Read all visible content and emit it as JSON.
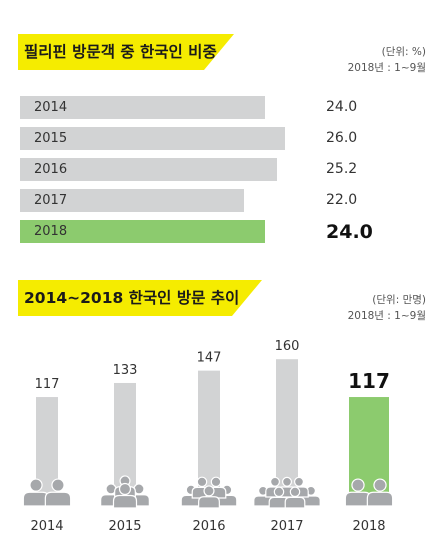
{
  "colors": {
    "banner": "#f5ec00",
    "bar": "#d2d3d4",
    "highlight": "#8ccb6e",
    "person": "#a6a8ab"
  },
  "section1": {
    "title": "필리핀 방문객 중 한국인 비중",
    "unit": "(단위: %)",
    "period": "2018년 : 1~9월"
  },
  "section2": {
    "title": "2014~2018 한국인 방문 추이",
    "unit": "(단위: 만명)",
    "period": "2018년 : 1~9월"
  },
  "chart_data": [
    {
      "type": "bar",
      "orientation": "horizontal",
      "categories": [
        "2014",
        "2015",
        "2016",
        "2017",
        "2018"
      ],
      "values": [
        24.0,
        26.0,
        25.2,
        22.0,
        24.0
      ],
      "value_labels": [
        "24.0",
        "26.0",
        "25.2",
        "22.0",
        "24.0"
      ],
      "highlight_index": 4
    },
    {
      "type": "bar",
      "orientation": "vertical",
      "categories": [
        "2014",
        "2015",
        "2016",
        "2017",
        "2018"
      ],
      "values": [
        117,
        133,
        147,
        160,
        117
      ],
      "value_labels": [
        "117",
        "133",
        "147",
        "160",
        "117"
      ],
      "people_icons": [
        2,
        3,
        4,
        5,
        2
      ],
      "highlight_index": 4
    }
  ]
}
